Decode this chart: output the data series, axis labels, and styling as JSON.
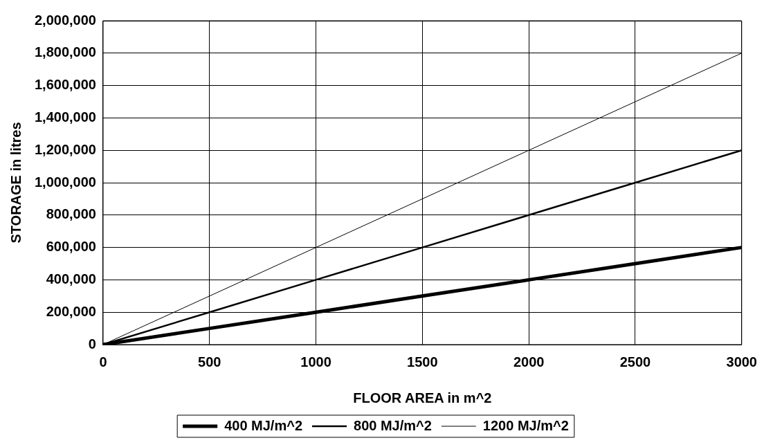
{
  "chart_data": {
    "type": "line",
    "xlabel": "FLOOR AREA in m^2",
    "ylabel": "STORAGE in litres",
    "x": [
      0,
      500,
      1000,
      1500,
      2000,
      2500,
      3000
    ],
    "series": [
      {
        "name": "400 MJ/m^2",
        "color": "#000000",
        "values": [
          0,
          100000,
          200000,
          300000,
          400000,
          500000,
          600000
        ]
      },
      {
        "name": "800 MJ/m^2",
        "color": "#000000",
        "values": [
          0,
          200000,
          400000,
          600000,
          800000,
          1000000,
          1200000
        ]
      },
      {
        "name": "1200 MJ/m^2",
        "color": "#000000",
        "values": [
          0,
          300000,
          600000,
          900000,
          1200000,
          1500000,
          1800000
        ]
      }
    ],
    "xlim": [
      0,
      3000
    ],
    "xticks": [
      0,
      500,
      1000,
      1500,
      2000,
      2500,
      3000
    ],
    "ylim": [
      0,
      2000000
    ],
    "yticks": [
      {
        "value": 0,
        "label": "0"
      },
      {
        "value": 200000,
        "label": "200,000"
      },
      {
        "value": 400000,
        "label": "400,000"
      },
      {
        "value": 600000,
        "label": "600,000"
      },
      {
        "value": 800000,
        "label": "800,000"
      },
      {
        "value": 1000000,
        "label": "1,000,000"
      },
      {
        "value": 1200000,
        "label": "1,200,000"
      },
      {
        "value": 1400000,
        "label": "1,400,000"
      },
      {
        "value": 1600000,
        "label": "1,600,000"
      },
      {
        "value": 1800000,
        "label": "1,800,000"
      },
      {
        "value": 2000000,
        "label": "2,000,000"
      }
    ],
    "grid": true,
    "legend": "bottom",
    "marker": "none",
    "line_style": "solid"
  }
}
